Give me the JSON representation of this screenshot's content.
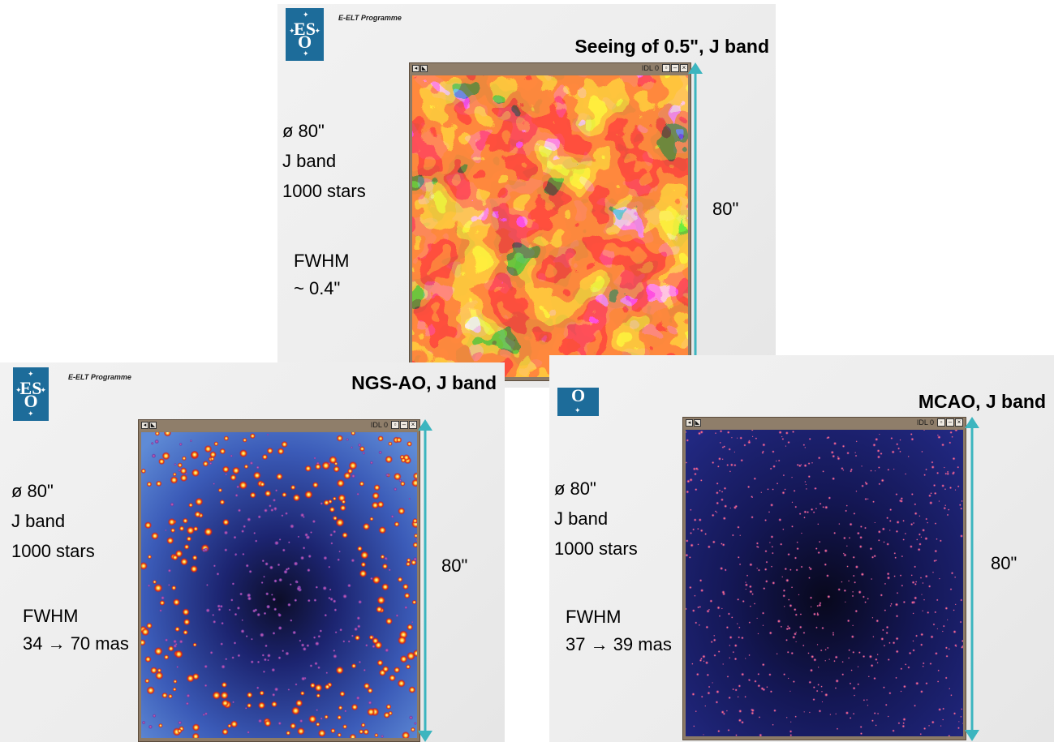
{
  "panels": [
    {
      "id": "top",
      "program_label": "E-ELT Programme",
      "title": "Seeing of 0.5\", J band",
      "params": [
        "ø 80\"",
        "J band",
        "1000 stars"
      ],
      "fwhm_label": "FWHM",
      "fwhm_value": "~ 0.4\"",
      "size_label": "80\"",
      "window_label": "IDL 0",
      "logo_text": "ES O"
    },
    {
      "id": "left",
      "program_label": "E-ELT Programme",
      "title": "NGS-AO, J band",
      "params": [
        "ø 80\"",
        "J band",
        "1000 stars"
      ],
      "fwhm_label": "FWHM",
      "fwhm_value": "34 → 70 mas",
      "size_label": "80\"",
      "window_label": "IDL 0",
      "logo_text": "ES O"
    },
    {
      "id": "right",
      "title": "MCAO, J band",
      "params": [
        "ø 80\"",
        "J band",
        "1000 stars"
      ],
      "fwhm_label": "FWHM",
      "fwhm_value": "37 → 39 mas",
      "size_label": "80\"",
      "window_label": "IDL 0",
      "logo_text": "O"
    }
  ],
  "icons": {
    "logo": "eso-logo-icon",
    "arrow": "double-headed-arrow-icon",
    "window_controls": [
      "restore-icon",
      "minimize-icon",
      "close-icon"
    ]
  },
  "colors": {
    "logo_blue": "#1d6c9a",
    "arrow_teal": "#3cb5bf",
    "window_frame": "#8c7a66"
  }
}
